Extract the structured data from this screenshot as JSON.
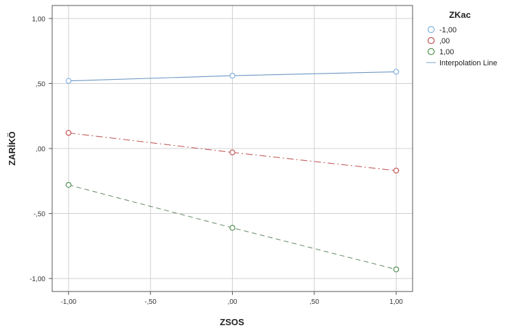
{
  "chart_data": {
    "type": "line",
    "xlabel": "ZSOS",
    "ylabel": "ZARİKÖ",
    "xlim": [
      -1.1,
      1.1
    ],
    "ylim": [
      -1.1,
      1.1
    ],
    "x_ticks": [
      -1.0,
      -0.5,
      0.0,
      0.5,
      1.0
    ],
    "x_tick_labels": [
      "-1,00",
      "-,50",
      ",00",
      ",50",
      "1,00"
    ],
    "y_ticks": [
      1.0,
      0.5,
      0.0,
      -0.5,
      -1.0
    ],
    "y_tick_labels": [
      "1,00",
      ",50",
      ",00",
      "-,50",
      "-1,00"
    ],
    "grid": true,
    "legend": {
      "title": "ZKac",
      "placement": "right",
      "interpolation_label": "Interpolation Line",
      "interpolation_color": "#a9bfd8"
    },
    "x": [
      -1.0,
      0.0,
      1.0
    ],
    "series": [
      {
        "name": "-1,00",
        "values": [
          0.52,
          0.56,
          0.59
        ],
        "color": "#6a96c2",
        "marker_color": "#7fb0e0",
        "dash": "solid"
      },
      {
        "name": ",00",
        "values": [
          0.12,
          -0.03,
          -0.17
        ],
        "color": "#c25a5a",
        "marker_color": "#c0504d",
        "dash": "dashdot"
      },
      {
        "name": "1,00",
        "values": [
          -0.28,
          -0.61,
          -0.93
        ],
        "color": "#6f8f6f",
        "marker_color": "#4f8f4f",
        "dash": "dash"
      }
    ]
  }
}
